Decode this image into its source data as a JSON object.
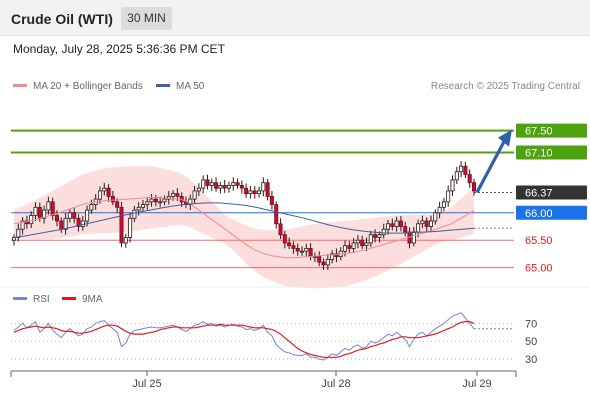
{
  "header": {
    "instrument": "Crude Oil (WTI)",
    "timeframe": "30 MIN"
  },
  "datetime": "Monday, July 28, 2025 5:36:36 PM CET",
  "legend": {
    "ma20_label": "MA 20 + Bollinger Bands",
    "ma50_label": "MA 50",
    "ma20_color": "#f28b8b",
    "ma50_color": "#3f5f9f",
    "credit": "Research © 2025 Trading Central"
  },
  "rsi_legend": {
    "rsi_label": "RSI",
    "ma9_label": "9MA",
    "rsi_color": "#6f88d6",
    "ma9_color": "#e31a1c"
  },
  "chart_data": [
    {
      "type": "candlestick",
      "x_tick_labels": [
        "Jul 25",
        "Jul 28",
        "Jul 29"
      ],
      "ylim": [
        64.5,
        68.15
      ],
      "current_price": 66.37,
      "levels": [
        {
          "value": 67.5,
          "label": "67.50",
          "kind": "resistance",
          "color": "#4ca30d"
        },
        {
          "value": 67.1,
          "label": "67.10",
          "kind": "resistance",
          "color": "#4ca30d"
        },
        {
          "value": 66.37,
          "label": "66.37",
          "kind": "last",
          "color": "#333333"
        },
        {
          "value": 66.0,
          "label": "66.00",
          "kind": "pivot",
          "color": "#1a73e8"
        },
        {
          "value": 65.5,
          "label": "65.50",
          "kind": "support",
          "color": "#ff6666"
        },
        {
          "value": 65.0,
          "label": "65.00",
          "kind": "support",
          "color": "#ff6666"
        }
      ],
      "close": [
        65.55,
        65.7,
        65.85,
        65.8,
        65.95,
        66.1,
        65.9,
        66.05,
        66.2,
        65.95,
        65.85,
        65.7,
        65.9,
        66.0,
        65.9,
        65.75,
        65.85,
        66.05,
        66.15,
        66.25,
        66.4,
        66.45,
        66.3,
        66.2,
        66.1,
        65.45,
        65.55,
        65.9,
        66.05,
        66.1,
        66.15,
        66.2,
        66.25,
        66.2,
        66.2,
        66.25,
        66.3,
        66.35,
        66.3,
        66.2,
        66.15,
        66.25,
        66.4,
        66.45,
        66.6,
        66.5,
        66.55,
        66.45,
        66.5,
        66.45,
        66.5,
        66.55,
        66.5,
        66.45,
        66.35,
        66.4,
        66.35,
        66.4,
        66.55,
        66.3,
        66.15,
        65.8,
        65.6,
        65.45,
        65.4,
        65.35,
        65.3,
        65.3,
        65.35,
        65.2,
        65.2,
        65.1,
        65.05,
        65.15,
        65.25,
        65.2,
        65.3,
        65.4,
        65.35,
        65.45,
        65.5,
        65.4,
        65.45,
        65.6,
        65.55,
        65.6,
        65.7,
        65.8,
        65.75,
        65.85,
        65.75,
        65.65,
        65.45,
        65.65,
        65.8,
        65.85,
        65.75,
        65.85,
        66.0,
        66.1,
        66.2,
        66.4,
        66.6,
        66.75,
        66.85,
        66.7,
        66.55,
        66.4
      ],
      "ma20": [
        65.8,
        65.82,
        65.85,
        65.88,
        65.92,
        65.96,
        66.0,
        66.05,
        66.1,
        66.15,
        66.18,
        66.2,
        66.22,
        66.23,
        66.24,
        66.25,
        66.26,
        66.27,
        66.28,
        66.28,
        66.27,
        66.26,
        66.25,
        66.2,
        66.1,
        66.0,
        65.9,
        65.8,
        65.7,
        65.6,
        65.5,
        65.4,
        65.32,
        65.26,
        65.22,
        65.2,
        65.18,
        65.18,
        65.19,
        65.2,
        65.21,
        65.22,
        65.23,
        65.24,
        65.26,
        65.28,
        65.31,
        65.34,
        65.38,
        65.42,
        65.46,
        65.5,
        65.54,
        65.58,
        65.62,
        65.66,
        65.7,
        65.75,
        65.8,
        65.88,
        65.96,
        66.04
      ],
      "ma50": [
        65.55,
        65.58,
        65.62,
        65.66,
        65.7,
        65.75,
        65.8,
        65.85,
        65.9,
        65.95,
        66.0,
        66.04,
        66.08,
        66.12,
        66.15,
        66.17,
        66.18,
        66.18,
        66.16,
        66.14,
        66.1,
        66.05,
        66.0,
        65.95,
        65.9,
        65.84,
        65.78,
        65.73,
        65.69,
        65.66,
        65.64,
        65.63,
        65.63,
        65.64,
        65.65,
        65.66,
        65.68,
        65.7,
        65.72
      ]
    },
    {
      "type": "line",
      "title": "RSI",
      "ylim": [
        20,
        85
      ],
      "levels": [
        70,
        50,
        30
      ],
      "series": [
        {
          "name": "RSI",
          "values": [
            62,
            66,
            70,
            65,
            68,
            72,
            60,
            64,
            70,
            62,
            58,
            54,
            60,
            64,
            60,
            56,
            58,
            64,
            66,
            70,
            72,
            73,
            68,
            64,
            60,
            44,
            48,
            58,
            62,
            63,
            64,
            65,
            66,
            65,
            65,
            66,
            67,
            68,
            66,
            63,
            61,
            64,
            68,
            69,
            72,
            69,
            70,
            67,
            68,
            66,
            68,
            69,
            67,
            66,
            63,
            64,
            62,
            64,
            68,
            60,
            56,
            46,
            42,
            38,
            37,
            35,
            34,
            34,
            36,
            32,
            32,
            30,
            29,
            32,
            36,
            34,
            38,
            42,
            40,
            44,
            46,
            42,
            44,
            50,
            48,
            50,
            54,
            58,
            56,
            60,
            56,
            52,
            44,
            52,
            58,
            60,
            56,
            60,
            64,
            67,
            70,
            74,
            78,
            80,
            82,
            76,
            70,
            64
          ]
        },
        {
          "name": "9MA",
          "values": [
            60,
            62,
            64,
            65,
            66,
            67,
            66,
            65,
            66,
            65,
            64,
            62,
            61,
            61,
            60,
            59,
            59,
            60,
            61,
            63,
            65,
            67,
            68,
            68,
            67,
            64,
            61,
            59,
            58,
            58,
            58,
            59,
            60,
            61,
            63,
            64,
            65,
            66,
            66,
            65,
            65,
            65,
            65,
            66,
            67,
            68,
            68,
            68,
            69,
            68,
            68,
            68,
            68,
            68,
            67,
            66,
            65,
            65,
            65,
            64,
            63,
            61,
            58,
            54,
            50,
            46,
            42,
            39,
            37,
            35,
            34,
            33,
            32,
            32,
            32,
            32,
            33,
            35,
            36,
            38,
            40,
            41,
            42,
            44,
            45,
            47,
            48,
            50,
            52,
            53,
            55,
            55,
            54,
            54,
            54,
            55,
            56,
            57,
            58,
            60,
            62,
            64,
            66,
            69,
            71,
            72,
            72,
            70
          ]
        }
      ]
    }
  ]
}
